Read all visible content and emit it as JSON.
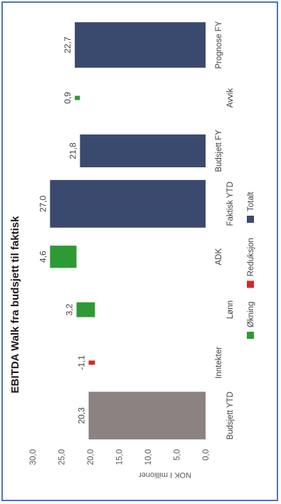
{
  "chart_data": {
    "type": "bar",
    "subtype": "waterfall",
    "title": "EBITDA Walk fra budsjett til faktisk",
    "ylabel": "NOK I millioner",
    "xlabel": "",
    "ylim": [
      0,
      30
    ],
    "yticks": [
      "0,0",
      "5,0",
      "10,0",
      "15,0",
      "20,0",
      "25,0",
      "30,0"
    ],
    "grid": false,
    "legend_position": "bottom",
    "categories": [
      "Budsjett YTD",
      "Inntekter",
      "Lønn",
      "ADK",
      "Faktisk YTD",
      "Budsjett FY",
      "Avvik",
      "Prognose FY"
    ],
    "values": [
      20.3,
      -1.1,
      3.2,
      4.6,
      27.0,
      21.8,
      0.9,
      22.7
    ],
    "value_labels": [
      "20,3",
      "-1,1",
      "3,2",
      "4,6",
      "27,0",
      "21,8",
      "0,9",
      "22,7"
    ],
    "bar_types": [
      "start",
      "decrease",
      "increase",
      "increase",
      "total",
      "total",
      "increase",
      "total"
    ],
    "bar_base": [
      0,
      19.2,
      19.2,
      22.4,
      0,
      0,
      21.8,
      0
    ],
    "legend": [
      {
        "label": "Økning",
        "key": "increase"
      },
      {
        "label": "Reduksjon",
        "key": "decrease"
      },
      {
        "label": "Totalt",
        "key": "total"
      }
    ],
    "colors": {
      "start": "#8c8282",
      "increase": "#2e9a35",
      "decrease": "#d12a2a",
      "total": "#3a4a6e",
      "frame": "#4a74c9"
    }
  }
}
